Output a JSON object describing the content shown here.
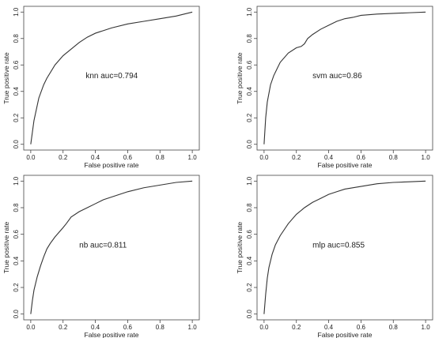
{
  "chart_data": [
    {
      "type": "line",
      "xlabel": "False positive rate",
      "ylabel": "True positive rate",
      "annotation": "knn auc=0.794",
      "xlim": [
        0,
        1
      ],
      "ylim": [
        0,
        1
      ],
      "xticks": [
        "0.0",
        "0.2",
        "0.4",
        "0.6",
        "0.8",
        "1.0"
      ],
      "yticks": [
        "0.0",
        "0.2",
        "0.4",
        "0.6",
        "0.8",
        "1.0"
      ],
      "grid": false,
      "series": [
        {
          "x": [
            0,
            0.02,
            0.05,
            0.08,
            0.1,
            0.15,
            0.2,
            0.25,
            0.3,
            0.35,
            0.4,
            0.45,
            0.5,
            0.6,
            0.7,
            0.8,
            0.9,
            1.0
          ],
          "values": [
            0,
            0.18,
            0.35,
            0.45,
            0.5,
            0.6,
            0.67,
            0.72,
            0.77,
            0.81,
            0.84,
            0.86,
            0.88,
            0.91,
            0.93,
            0.95,
            0.97,
            1.0
          ]
        }
      ]
    },
    {
      "type": "line",
      "xlabel": "False positive rate",
      "ylabel": "True positive rate",
      "annotation": "svm auc=0.86",
      "xlim": [
        0,
        1
      ],
      "ylim": [
        0,
        1
      ],
      "xticks": [
        "0.0",
        "0.2",
        "0.4",
        "0.6",
        "0.8",
        "1.0"
      ],
      "yticks": [
        "0.0",
        "0.2",
        "0.4",
        "0.6",
        "0.8",
        "1.0"
      ],
      "grid": false,
      "series": [
        {
          "x": [
            0,
            0.01,
            0.02,
            0.04,
            0.06,
            0.08,
            0.1,
            0.15,
            0.2,
            0.23,
            0.25,
            0.27,
            0.3,
            0.35,
            0.4,
            0.45,
            0.5,
            0.55,
            0.6,
            0.7,
            0.8,
            0.9,
            1.0
          ],
          "values": [
            0,
            0.2,
            0.32,
            0.45,
            0.52,
            0.57,
            0.62,
            0.69,
            0.73,
            0.74,
            0.76,
            0.8,
            0.83,
            0.87,
            0.9,
            0.93,
            0.95,
            0.96,
            0.975,
            0.985,
            0.99,
            0.995,
            1.0
          ]
        }
      ]
    },
    {
      "type": "line",
      "xlabel": "False positive rate",
      "ylabel": "True positive rate",
      "annotation": "nb auc=0.811",
      "xlim": [
        0,
        1
      ],
      "ylim": [
        0,
        1
      ],
      "xticks": [
        "0.0",
        "0.2",
        "0.4",
        "0.6",
        "0.8",
        "1.0"
      ],
      "yticks": [
        "0.0",
        "0.2",
        "0.4",
        "0.6",
        "0.8",
        "1.0"
      ],
      "grid": false,
      "series": [
        {
          "x": [
            0,
            0.01,
            0.02,
            0.04,
            0.06,
            0.08,
            0.1,
            0.12,
            0.15,
            0.2,
            0.22,
            0.25,
            0.3,
            0.35,
            0.4,
            0.45,
            0.5,
            0.6,
            0.7,
            0.8,
            0.9,
            1.0
          ],
          "values": [
            0,
            0.1,
            0.18,
            0.28,
            0.36,
            0.43,
            0.49,
            0.53,
            0.58,
            0.65,
            0.68,
            0.73,
            0.77,
            0.8,
            0.83,
            0.86,
            0.88,
            0.92,
            0.95,
            0.97,
            0.99,
            1.0
          ]
        }
      ]
    },
    {
      "type": "line",
      "xlabel": "False positive rate",
      "ylabel": "True positive rate",
      "annotation": "mlp auc=0.855",
      "xlim": [
        0,
        1
      ],
      "ylim": [
        0,
        1
      ],
      "xticks": [
        "0.0",
        "0.2",
        "0.4",
        "0.6",
        "0.8",
        "1.0"
      ],
      "yticks": [
        "0.0",
        "0.2",
        "0.4",
        "0.6",
        "0.8",
        "1.0"
      ],
      "grid": false,
      "series": [
        {
          "x": [
            0,
            0.01,
            0.02,
            0.03,
            0.05,
            0.07,
            0.1,
            0.15,
            0.2,
            0.25,
            0.3,
            0.35,
            0.4,
            0.45,
            0.5,
            0.6,
            0.7,
            0.8,
            0.9,
            1.0
          ],
          "values": [
            0,
            0.15,
            0.27,
            0.35,
            0.45,
            0.52,
            0.59,
            0.68,
            0.75,
            0.8,
            0.84,
            0.87,
            0.9,
            0.92,
            0.94,
            0.96,
            0.98,
            0.99,
            0.995,
            1.0
          ]
        }
      ]
    }
  ]
}
